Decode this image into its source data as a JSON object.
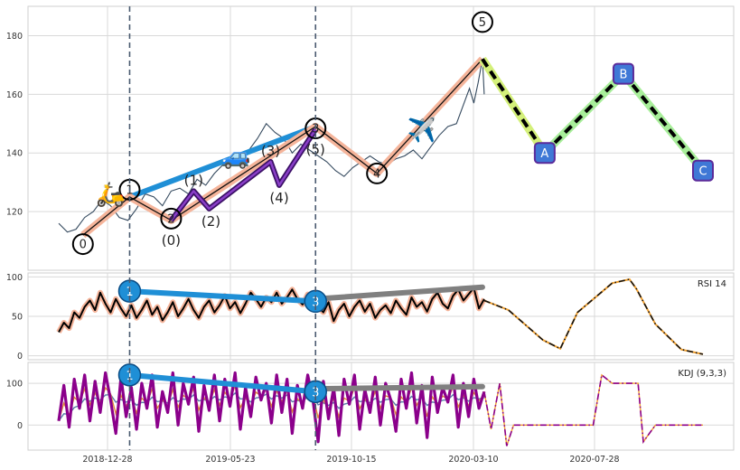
{
  "chart_data": [
    {
      "type": "line",
      "panel": "price",
      "ylim": [
        100,
        190
      ],
      "yticks": [
        120,
        140,
        160,
        180
      ],
      "xticks": [
        "2018-12-28",
        "2019-05-23",
        "2019-10-15",
        "2020-03-10",
        "2020-07-28"
      ],
      "grid": true,
      "series": [
        {
          "kind": "price",
          "x": [
            0,
            10,
            20,
            30,
            40,
            50,
            60,
            70,
            80,
            90,
            100,
            110,
            120,
            130,
            140,
            150,
            160,
            170,
            180,
            190,
            200,
            210,
            220,
            230,
            240,
            250,
            260,
            270,
            280,
            290,
            300,
            310,
            320,
            330,
            340,
            350,
            360,
            370,
            380,
            390,
            400,
            410,
            420,
            430,
            440,
            450,
            460,
            470,
            475,
            480,
            485,
            490,
            492
          ],
          "values": [
            116,
            113,
            114,
            118,
            120,
            124,
            122,
            118,
            117,
            121,
            126,
            125,
            122,
            127,
            128,
            126,
            131,
            129,
            133,
            136,
            137,
            139,
            141,
            145,
            150,
            147,
            145,
            140,
            143,
            141,
            139,
            137,
            134,
            132,
            135,
            137,
            139,
            137,
            136,
            138,
            139,
            141,
            138,
            142,
            146,
            149,
            150,
            158,
            162,
            157,
            164,
            172,
            160
          ]
        }
      ],
      "waves": {
        "points": [
          {
            "label": "0",
            "x": 28,
            "y": 112
          },
          {
            "label": "1",
            "x": 82,
            "y": 125
          },
          {
            "label": "2",
            "x": 130,
            "y": 117
          },
          {
            "label": "3",
            "x": 297,
            "y": 149
          },
          {
            "label": "4",
            "x": 368,
            "y": 133
          },
          {
            "label": "5",
            "x": 490,
            "y": 172
          },
          {
            "label": "A",
            "x": 562,
            "y": 140
          },
          {
            "label": "B",
            "x": 653,
            "y": 167
          },
          {
            "label": "C",
            "x": 745,
            "y": 134
          }
        ],
        "subwaves": [
          {
            "label": "(0)",
            "x": 130,
            "y": 117
          },
          {
            "label": "(1)",
            "x": 156,
            "y": 127
          },
          {
            "label": "(2)",
            "x": 174,
            "y": 121
          },
          {
            "label": "(3)",
            "x": 245,
            "y": 137
          },
          {
            "label": "(4)",
            "x": 255,
            "y": 129
          },
          {
            "label": "(5)",
            "x": 297,
            "y": 148
          }
        ],
        "trend_line": {
          "from": {
            "x": 82,
            "y": 125
          },
          "to": {
            "x": 297,
            "y": 149
          }
        },
        "vlines_x": [
          82,
          297
        ]
      },
      "icons": [
        {
          "name": "scooter-icon",
          "glyph": "🛵",
          "x": 60,
          "y": 126
        },
        {
          "name": "car-icon",
          "glyph": "🚙",
          "x": 205,
          "y": 139
        },
        {
          "name": "airplane-icon",
          "glyph": "✈️",
          "x": 420,
          "y": 148
        }
      ]
    },
    {
      "type": "line",
      "panel": "rsi",
      "label": "RSI 14",
      "ylim": [
        -5,
        105
      ],
      "yticks": [
        0,
        50,
        100
      ],
      "grid": true,
      "series": [
        {
          "kind": "rsi",
          "x": [
            0,
            6,
            12,
            18,
            24,
            30,
            36,
            42,
            48,
            54,
            60,
            66,
            72,
            78,
            84,
            90,
            96,
            102,
            108,
            114,
            120,
            126,
            132,
            138,
            144,
            150,
            156,
            162,
            168,
            174,
            180,
            186,
            192,
            198,
            204,
            210,
            216,
            222,
            228,
            234,
            240,
            246,
            252,
            258,
            264,
            270,
            276,
            282,
            288,
            294,
            300,
            306,
            312,
            318,
            324,
            330,
            336,
            342,
            348,
            354,
            360,
            366,
            372,
            378,
            384,
            390,
            396,
            402,
            408,
            414,
            420,
            426,
            432,
            438,
            444,
            450,
            456,
            462,
            468,
            474,
            480,
            486,
            492
          ],
          "values": [
            30,
            42,
            35,
            55,
            48,
            62,
            70,
            58,
            80,
            66,
            55,
            72,
            60,
            50,
            64,
            48,
            58,
            70,
            52,
            62,
            45,
            55,
            68,
            50,
            60,
            72,
            58,
            48,
            62,
            70,
            55,
            64,
            76,
            60,
            68,
            54,
            66,
            80,
            72,
            62,
            74,
            68,
            80,
            66,
            74,
            84,
            72,
            65,
            78,
            70,
            62,
            55,
            68,
            44,
            58,
            66,
            50,
            62,
            70,
            56,
            66,
            48,
            58,
            64,
            54,
            70,
            60,
            52,
            74,
            62,
            68,
            56,
            72,
            80,
            66,
            60,
            76,
            84,
            70,
            78,
            86,
            60,
            72
          ]
        },
        {
          "kind": "rsi-projection",
          "x": [
            492,
            520,
            560,
            580,
            600,
            640,
            660,
            668,
            690,
            720,
            745
          ],
          "values": [
            70,
            58,
            20,
            9,
            55,
            92,
            97,
            85,
            40,
            8,
            2
          ]
        }
      ],
      "waves": {
        "points": [
          {
            "label": "1",
            "x": 82,
            "y": 82
          },
          {
            "label": "3",
            "x": 297,
            "y": 69
          }
        ],
        "trend_line": {
          "from": {
            "x": 82,
            "y": 82
          },
          "to": {
            "x": 297,
            "y": 69
          }
        },
        "projection_line": {
          "from": {
            "x": 297,
            "y": 72
          },
          "to": {
            "x": 490,
            "y": 87
          }
        }
      }
    },
    {
      "type": "line",
      "panel": "kdj",
      "label": "KDJ (9,3,3)",
      "ylim": [
        -60,
        150
      ],
      "yticks": [
        0,
        100
      ],
      "grid": true,
      "series": [
        {
          "kind": "kdj-j",
          "x": [
            0,
            6,
            12,
            18,
            24,
            30,
            36,
            42,
            48,
            54,
            60,
            66,
            72,
            78,
            84,
            90,
            96,
            102,
            108,
            114,
            120,
            126,
            132,
            138,
            144,
            150,
            156,
            162,
            168,
            174,
            180,
            186,
            192,
            198,
            204,
            210,
            216,
            222,
            228,
            234,
            240,
            246,
            252,
            258,
            264,
            270,
            276,
            282,
            288,
            294,
            300,
            306,
            312,
            318,
            324,
            330,
            336,
            342,
            348,
            354,
            360,
            366,
            372,
            378,
            384,
            390,
            396,
            402,
            408,
            414,
            420,
            426,
            432,
            438,
            444,
            450,
            456,
            462,
            468,
            474,
            480,
            486,
            492
          ],
          "values": [
            10,
            95,
            -5,
            110,
            40,
            120,
            10,
            105,
            30,
            125,
            60,
            -20,
            115,
            20,
            90,
            -10,
            100,
            40,
            120,
            -5,
            80,
            30,
            125,
            0,
            100,
            50,
            115,
            -15,
            95,
            35,
            120,
            10,
            110,
            45,
            125,
            -10,
            90,
            20,
            115,
            60,
            100,
            5,
            120,
            30,
            110,
            -20,
            95,
            40,
            120,
            60,
            -40,
            105,
            15,
            90,
            -25,
            110,
            50,
            120,
            -10,
            85,
            30,
            115,
            0,
            100,
            60,
            -15,
            110,
            40,
            125,
            5,
            95,
            -30,
            115,
            30,
            90,
            55,
            120,
            -5,
            100,
            20,
            110,
            40,
            80
          ]
        },
        {
          "kind": "kdj-projection",
          "x": [
            492,
            500,
            510,
            518,
            526,
            560,
            600,
            618,
            628,
            640,
            660,
            670,
            676,
            690,
            720,
            745
          ],
          "values": [
            80,
            -10,
            100,
            -50,
            0,
            0,
            0,
            0,
            120,
            100,
            100,
            100,
            -40,
            0,
            0,
            0
          ]
        }
      ],
      "waves": {
        "points": [
          {
            "label": "1",
            "x": 82,
            "y": 120
          },
          {
            "label": "3",
            "x": 297,
            "y": 80
          }
        ],
        "trend_line": {
          "from": {
            "x": 82,
            "y": 120
          },
          "to": {
            "x": 297,
            "y": 80
          }
        },
        "projection_line": {
          "from": {
            "x": 297,
            "y": 87
          },
          "to": {
            "x": 490,
            "y": 92
          }
        }
      }
    }
  ]
}
